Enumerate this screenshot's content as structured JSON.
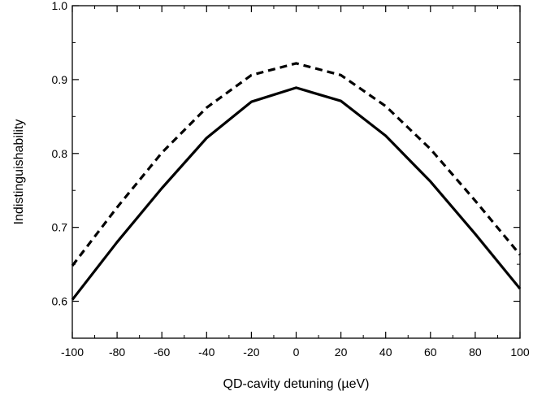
{
  "chart_data": {
    "type": "line",
    "title": "",
    "xlabel": "QD-cavity detuning (µeV)",
    "ylabel": "Indistinguishability",
    "xlim": [
      -100,
      100
    ],
    "ylim": [
      0.55,
      1.0
    ],
    "x_ticks": [
      -100,
      -80,
      -60,
      -40,
      -20,
      0,
      20,
      40,
      60,
      80,
      100
    ],
    "x_tick_labels": [
      "-100",
      "-80",
      "-60",
      "-40",
      "-20",
      "0",
      "20",
      "40",
      "60",
      "80",
      "100"
    ],
    "y_ticks": [
      0.6,
      0.7,
      0.8,
      0.9,
      1.0
    ],
    "y_tick_labels": [
      "0.6",
      "0.7",
      "0.8",
      "0.9",
      "1.0"
    ],
    "grid": false,
    "legend": "none",
    "x": [
      -100,
      -80,
      -60,
      -40,
      -20,
      0,
      20,
      40,
      60,
      80,
      100
    ],
    "series": [
      {
        "style": "dashed",
        "color": "#000000",
        "values": [
          0.648,
          0.727,
          0.801,
          0.862,
          0.906,
          0.922,
          0.906,
          0.864,
          0.806,
          0.736,
          0.663
        ]
      },
      {
        "style": "solid",
        "color": "#000000",
        "values": [
          0.602,
          0.68,
          0.753,
          0.821,
          0.87,
          0.889,
          0.871,
          0.824,
          0.762,
          0.691,
          0.617
        ]
      }
    ]
  }
}
